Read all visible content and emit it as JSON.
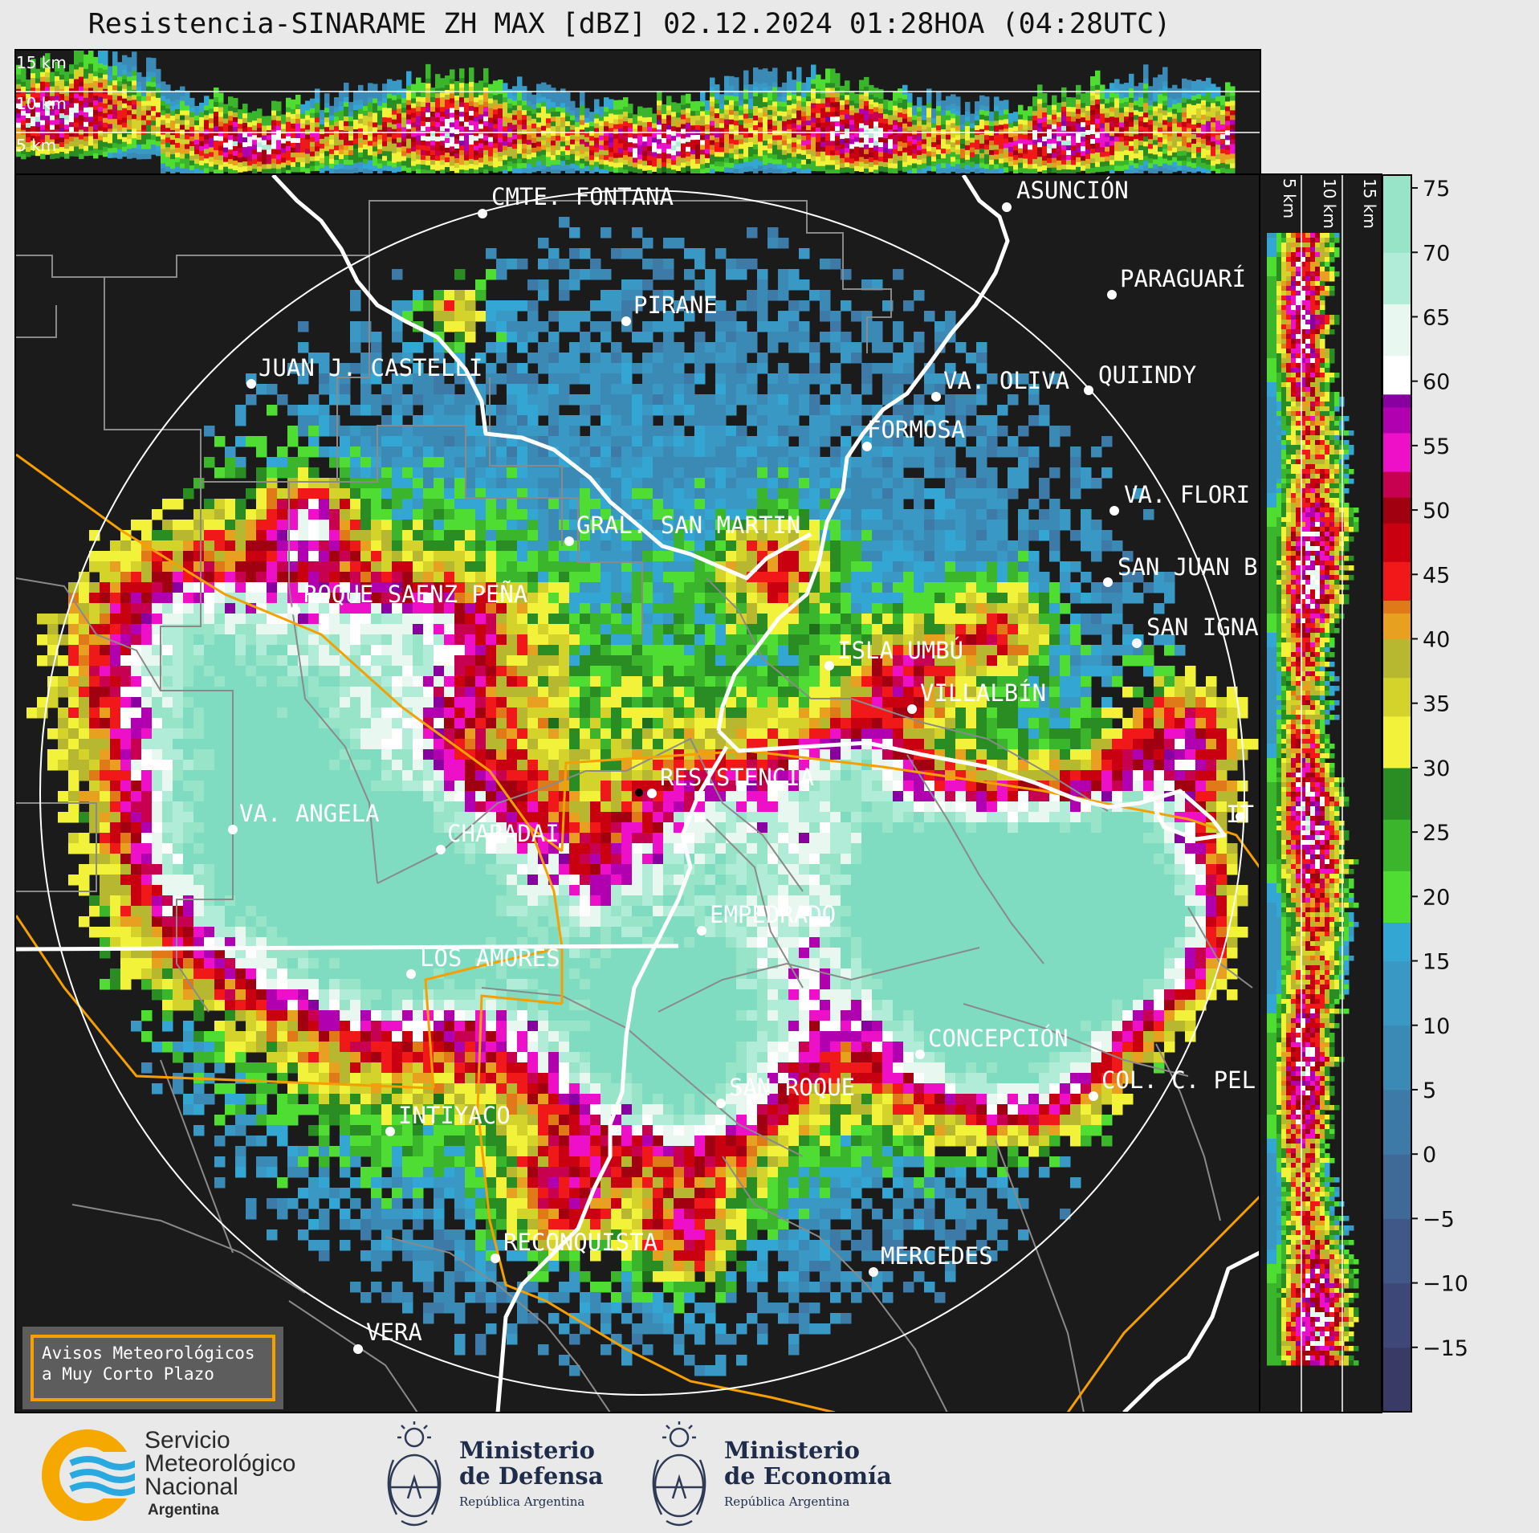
{
  "title": "Resistencia-SINARAME ZH MAX [dBZ] 02.12.2024 01:28HOA (04:28UTC)",
  "top_panel_levels": [
    "15 km",
    "10 km",
    "5 km"
  ],
  "right_panel_levels": [
    "5 km",
    "10 km",
    "15 km"
  ],
  "colorbar": {
    "ticks": [
      "75",
      "70",
      "65",
      "60",
      "55",
      "50",
      "45",
      "40",
      "35",
      "30",
      "25",
      "20",
      "15",
      "10",
      "5",
      "0",
      "−5",
      "−10",
      "−15"
    ],
    "range_dbz": [
      -20,
      76
    ]
  },
  "cities": [
    {
      "name": "CMTE. FONTANA"
    },
    {
      "name": "ASUNCIÓN"
    },
    {
      "name": "PARAGUARÍ"
    },
    {
      "name": "PIRANE"
    },
    {
      "name": "JUAN J. CASTELLI"
    },
    {
      "name": "VA. OLIVA"
    },
    {
      "name": "QUIINDY"
    },
    {
      "name": "FORMOSA"
    },
    {
      "name": "VA. FLORI"
    },
    {
      "name": "GRAL. SAN MARTIN"
    },
    {
      "name": "SAN JUAN B"
    },
    {
      "name": "ROQUE SAENZ PEÑA"
    },
    {
      "name": "SAN IGNA"
    },
    {
      "name": "ISLA UMBÚ"
    },
    {
      "name": "VILLALBÍN"
    },
    {
      "name": "RESISTENCIA"
    },
    {
      "name": "VA. ANGELA"
    },
    {
      "name": "CHARADAI"
    },
    {
      "name": "IT"
    },
    {
      "name": "EMPEDRADO"
    },
    {
      "name": "LOS AMORES"
    },
    {
      "name": "CONCEPCIÓN"
    },
    {
      "name": "SAN ROQUE"
    },
    {
      "name": "COL. C. PEL"
    },
    {
      "name": "INTIYACO"
    },
    {
      "name": "RECONQUISTA"
    },
    {
      "name": "MERCEDES"
    },
    {
      "name": "VERA"
    }
  ],
  "avisos": {
    "line1": "Avisos Meteorológicos",
    "line2": "a Muy Corto Plazo"
  },
  "footer": {
    "smn": {
      "l1": "Servicio",
      "l2": "Meteorológico",
      "l3": "Nacional",
      "l4": "Argentina"
    },
    "defensa": {
      "l1": "Ministerio",
      "l2": "de Defensa",
      "l3": "República Argentina"
    },
    "economia": {
      "l1": "Ministerio",
      "l2": "de Economía",
      "l3": "República Argentina"
    }
  },
  "colors": {
    "background": "#1b1b1b",
    "range_ring": "#ffffff",
    "rivers": "#ffffff",
    "province_borders": "#f5a000",
    "department_borders": "#8a8a8a",
    "smn_orange": "#f5a800",
    "smn_blue": "#2aa8e0"
  }
}
